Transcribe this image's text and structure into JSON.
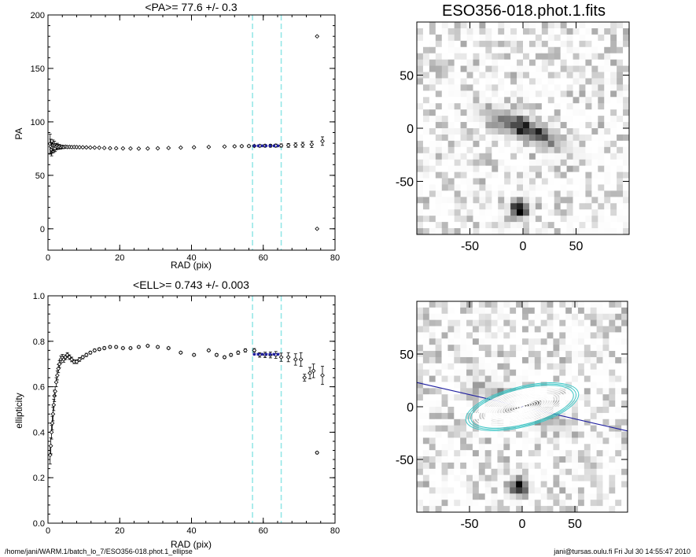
{
  "chart_data": [
    {
      "type": "scatter",
      "title": "<PA>=  77.6 +/-   0.3",
      "xlabel": "RAD (pix)",
      "ylabel": "PA",
      "xlim": [
        0,
        80
      ],
      "ylim": [
        -20,
        200
      ],
      "xticks": [
        "0",
        "20",
        "40",
        "60",
        "80"
      ],
      "yticks": [
        "0",
        "50",
        "100",
        "150",
        "200"
      ],
      "vlines": [
        57,
        65
      ],
      "series": [
        {
          "marker": "diamond-errorbar",
          "color": "#000000",
          "x": [
            0.6,
            0.8,
            1.0,
            1.2,
            1.4,
            1.6,
            1.8,
            2.0,
            2.3,
            2.6,
            2.9,
            3.2,
            3.6,
            4.0,
            4.4,
            4.9,
            5.4,
            6.0,
            6.6,
            7.3,
            8.0,
            8.8,
            9.7,
            10.7,
            11.8,
            13.0,
            14.3,
            15.7,
            17.3,
            19.0,
            20.9,
            23.0,
            25.3,
            27.8,
            30.6,
            33.6,
            37.0,
            40.7,
            44.8,
            49.2,
            52.0,
            54.0,
            56.0,
            57.5,
            59.0,
            60.5,
            62.0,
            63.5,
            65.0,
            67.0,
            69.0,
            71.0,
            73.5,
            75.0,
            75.0,
            76.5
          ],
          "y": [
            79.5,
            76.8,
            74.2,
            75.8,
            78.1,
            75.3,
            77.9,
            75.2,
            76.8,
            77.5,
            76.3,
            76.9,
            76.2,
            76.7,
            76.4,
            76.8,
            76.5,
            76.6,
            76.4,
            76.5,
            76.4,
            76.3,
            76.2,
            76.1,
            76.0,
            75.9,
            75.8,
            75.6,
            75.4,
            75.3,
            75.2,
            75.1,
            75.0,
            75.1,
            75.3,
            75.6,
            75.9,
            76.2,
            76.5,
            76.9,
            77.1,
            77.3,
            77.4,
            77.5,
            77.6,
            77.7,
            77.7,
            77.8,
            77.9,
            78.0,
            78.3,
            78.6,
            79.0,
            180,
            0,
            82
          ],
          "err": [
            9,
            7,
            6,
            5,
            5,
            4,
            4,
            3,
            3,
            2.5,
            2,
            2,
            1.6,
            1.4,
            1.2,
            1.0,
            0.9,
            0.8,
            0.7,
            0.6,
            0.6,
            0.5,
            0.5,
            0.5,
            0.4,
            0.4,
            0.4,
            0.4,
            0.4,
            0.4,
            0.4,
            0.4,
            0.4,
            0.4,
            0.5,
            0.5,
            0.5,
            0.6,
            0.6,
            0.7,
            0.8,
            0.9,
            1.0,
            1.0,
            1.1,
            1.2,
            1.3,
            1.4,
            1.5,
            1.8,
            2.0,
            2.3,
            3.0,
            0.5,
            0.5,
            4.0
          ]
        },
        {
          "marker": "dot",
          "color": "#1f1fa0",
          "x": [
            57.5,
            58.6,
            59.7,
            60.8,
            61.9,
            63.0,
            64.1
          ],
          "y": [
            77.6,
            77.6,
            77.6,
            77.6,
            77.6,
            77.6,
            77.6
          ],
          "err": [
            0.3,
            0.3,
            0.3,
            0.3,
            0.3,
            0.3,
            0.3
          ]
        }
      ]
    },
    {
      "type": "scatter",
      "title": "<ELL>= 0.743 +/-  0.003",
      "xlabel": "RAD (pix)",
      "ylabel": "ellipticity",
      "xlim": [
        0,
        80
      ],
      "ylim": [
        0.0,
        1.0
      ],
      "xticks": [
        "0",
        "20",
        "40",
        "60",
        "80"
      ],
      "yticks": [
        "0.0",
        "0.2",
        "0.4",
        "0.6",
        "0.8",
        "1.0"
      ],
      "vlines": [
        57,
        65
      ],
      "series": [
        {
          "marker": "diamond-errorbar",
          "color": "#000000",
          "x": [
            0.6,
            0.8,
            1.0,
            1.2,
            1.4,
            1.6,
            1.8,
            2.0,
            2.3,
            2.6,
            2.9,
            3.2,
            3.6,
            4.0,
            4.4,
            4.9,
            5.4,
            6.0,
            6.6,
            7.3,
            8.0,
            8.8,
            9.7,
            10.7,
            11.8,
            13.0,
            14.3,
            15.7,
            17.3,
            19.0,
            20.9,
            23.0,
            25.3,
            27.8,
            30.6,
            33.6,
            37.0,
            40.7,
            44.8,
            47.0,
            49.2,
            51.0,
            53.0,
            55.0,
            57.5,
            59.0,
            60.5,
            62.0,
            63.5,
            65.0,
            67.0,
            69.0,
            70.5,
            71.5,
            73.0,
            74.0,
            75.0,
            76.5
          ],
          "y": [
            0.3,
            0.34,
            0.4,
            0.44,
            0.48,
            0.52,
            0.56,
            0.58,
            0.62,
            0.65,
            0.68,
            0.7,
            0.72,
            0.73,
            0.72,
            0.73,
            0.74,
            0.73,
            0.72,
            0.71,
            0.71,
            0.72,
            0.73,
            0.74,
            0.75,
            0.76,
            0.765,
            0.77,
            0.775,
            0.775,
            0.77,
            0.77,
            0.775,
            0.78,
            0.775,
            0.77,
            0.75,
            0.74,
            0.76,
            0.74,
            0.73,
            0.74,
            0.75,
            0.76,
            0.76,
            0.74,
            0.74,
            0.74,
            0.74,
            0.73,
            0.73,
            0.72,
            0.72,
            0.64,
            0.66,
            0.67,
            0.31,
            0.65
          ],
          "err": [
            0.04,
            0.035,
            0.03,
            0.03,
            0.03,
            0.025,
            0.025,
            0.02,
            0.02,
            0.02,
            0.018,
            0.015,
            0.015,
            0.012,
            0.012,
            0.01,
            0.01,
            0.01,
            0.01,
            0.008,
            0.008,
            0.008,
            0.007,
            0.007,
            0.006,
            0.006,
            0.006,
            0.006,
            0.005,
            0.005,
            0.005,
            0.005,
            0.005,
            0.005,
            0.005,
            0.005,
            0.005,
            0.005,
            0.005,
            0.006,
            0.006,
            0.006,
            0.007,
            0.007,
            0.008,
            0.01,
            0.012,
            0.013,
            0.015,
            0.018,
            0.02,
            0.025,
            0.03,
            0.015,
            0.025,
            0.03,
            0.005,
            0.04
          ]
        },
        {
          "marker": "dot",
          "color": "#1f1fa0",
          "x": [
            57.5,
            58.6,
            59.7,
            60.8,
            61.9,
            63.0,
            64.1
          ],
          "y": [
            0.743,
            0.743,
            0.743,
            0.743,
            0.743,
            0.743,
            0.743
          ],
          "err": [
            0.003,
            0.003,
            0.003,
            0.003,
            0.003,
            0.003,
            0.003
          ]
        }
      ]
    },
    {
      "type": "heatmap",
      "title": "ESO356-018.phot.1.fits",
      "xlim": [
        -100,
        100
      ],
      "ylim": [
        -100,
        100
      ],
      "xticks": [
        "-50",
        "0",
        "50"
      ],
      "yticks": [
        "-50",
        "0",
        "50"
      ],
      "colormap": "gray-inverted"
    },
    {
      "type": "heatmap",
      "title": "",
      "xlim": [
        -100,
        100
      ],
      "ylim": [
        -100,
        100
      ],
      "xticks": [
        "-50",
        "0",
        "50"
      ],
      "yticks": [
        "-50",
        "0",
        "50"
      ],
      "colormap": "gray-inverted",
      "overlay": "fitted isophote ellipses with major-axis line",
      "overlay_colors": [
        "#ffffff",
        "#40c8c8",
        "#1f1fa0"
      ]
    }
  ],
  "footer": {
    "left": "/home/jani/WARM.1/batch_lo_7/ESO356-018.phot.1_ellipse",
    "right": "jani@tursas.oulu.fi  Fri Jul 30 14:55:47 2010"
  }
}
